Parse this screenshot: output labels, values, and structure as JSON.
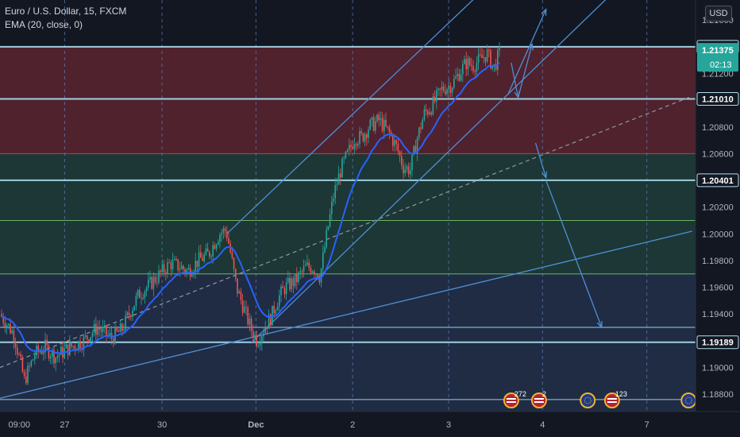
{
  "legend": {
    "symbol": "Euro / U.S. Dollar, 15, FXCM",
    "indicator": "EMA (20, close, 0)"
  },
  "currency_button": "USD",
  "countdown": "02:13",
  "colors": {
    "background": "#131722",
    "red_zone": "#5a2430",
    "green_zone": "#1f3d38",
    "blue_zone": "#22304a",
    "candle_up": "#26a69a",
    "candle_down": "#ef5350",
    "ema": "#2962ff",
    "trendline": "#4f8fd6",
    "level_line": "#aee0f2",
    "red_line": "#e03c3c",
    "green_line": "#79c36a",
    "price_badge": "#26a69a"
  },
  "events": [
    {
      "id": "ev1",
      "icon": "us-flag-icon",
      "count": "272"
    },
    {
      "id": "ev2",
      "icon": "us-flag-icon",
      "count": "2"
    },
    {
      "id": "ev3",
      "icon": "eu-flag-icon",
      "count": ""
    },
    {
      "id": "ev4",
      "icon": "us-flag-icon",
      "count": "123"
    },
    {
      "id": "ev5",
      "icon": "eu-flag-icon",
      "count": ""
    }
  ],
  "chart_data": {
    "type": "candlestick",
    "ylim": [
      1.1867,
      1.2175
    ],
    "y_ticks": [
      "1.21600",
      "1.21400",
      "1.21200",
      "1.20800",
      "1.20600",
      "1.20200",
      "1.20000",
      "1.19800",
      "1.19600",
      "1.19400",
      "1.19000",
      "1.18800"
    ],
    "x_ticks": [
      "09:00",
      "27",
      "30",
      "Dec",
      "2",
      "3",
      "4",
      "7"
    ],
    "current_price": 1.21375,
    "levels": [
      {
        "value": 1.214,
        "label": "1.21400",
        "kind": "resistance"
      },
      {
        "value": 1.2101,
        "label": "1.21010",
        "kind": "resistance"
      },
      {
        "value": 1.206,
        "kind": "red"
      },
      {
        "value": 1.20401,
        "label": "1.20401",
        "kind": "support"
      },
      {
        "value": 1.201,
        "kind": "green"
      },
      {
        "value": 1.197,
        "kind": "green"
      },
      {
        "value": 1.193,
        "kind": "blue"
      },
      {
        "value": 1.19189,
        "label": "1.19189",
        "kind": "support"
      },
      {
        "value": 1.1876,
        "kind": "blue"
      }
    ],
    "zones": [
      {
        "from": 1.214,
        "to": 1.206,
        "kind": "red"
      },
      {
        "from": 1.206,
        "to": 1.197,
        "kind": "green"
      },
      {
        "from": 1.197,
        "to": 1.184,
        "kind": "blue"
      }
    ],
    "price_path": [
      [
        0,
        1.194
      ],
      [
        0.02,
        1.1925
      ],
      [
        0.035,
        1.189
      ],
      [
        0.05,
        1.191
      ],
      [
        0.065,
        1.1915
      ],
      [
        0.08,
        1.1908
      ],
      [
        0.1,
        1.1915
      ],
      [
        0.12,
        1.192
      ],
      [
        0.14,
        1.193
      ],
      [
        0.16,
        1.1922
      ],
      [
        0.175,
        1.1928
      ],
      [
        0.19,
        1.1945
      ],
      [
        0.2,
        1.1955
      ],
      [
        0.215,
        1.1962
      ],
      [
        0.23,
        1.197
      ],
      [
        0.245,
        1.1978
      ],
      [
        0.26,
        1.1975
      ],
      [
        0.27,
        1.1972
      ],
      [
        0.285,
        1.198
      ],
      [
        0.3,
        1.1985
      ],
      [
        0.315,
        1.2
      ],
      [
        0.325,
        1.2003
      ],
      [
        0.33,
        1.199
      ],
      [
        0.34,
        1.196
      ],
      [
        0.35,
        1.1945
      ],
      [
        0.36,
        1.193
      ],
      [
        0.37,
        1.192
      ],
      [
        0.38,
        1.193
      ],
      [
        0.39,
        1.1938
      ],
      [
        0.4,
        1.1952
      ],
      [
        0.41,
        1.196
      ],
      [
        0.425,
        1.1965
      ],
      [
        0.44,
        1.1975
      ],
      [
        0.45,
        1.1975
      ],
      [
        0.46,
        1.1968
      ],
      [
        0.47,
        1.2
      ],
      [
        0.48,
        1.203
      ],
      [
        0.49,
        1.2048
      ],
      [
        0.5,
        1.206
      ],
      [
        0.51,
        1.2072
      ],
      [
        0.52,
        1.2072
      ],
      [
        0.53,
        1.208
      ],
      [
        0.545,
        1.2085
      ],
      [
        0.56,
        1.2075
      ],
      [
        0.57,
        1.2065
      ],
      [
        0.58,
        1.205
      ],
      [
        0.59,
        1.2048
      ],
      [
        0.6,
        1.2072
      ],
      [
        0.61,
        1.209
      ],
      [
        0.62,
        1.2095
      ],
      [
        0.635,
        1.2108
      ],
      [
        0.65,
        1.2112
      ],
      [
        0.66,
        1.212
      ],
      [
        0.67,
        1.2128
      ],
      [
        0.68,
        1.2126
      ],
      [
        0.69,
        1.213
      ],
      [
        0.7,
        1.2135
      ],
      [
        0.71,
        1.2124
      ],
      [
        0.72,
        1.2138
      ]
    ],
    "channel_lines": [
      {
        "x1": 0.326,
        "y1": 1.2,
        "x2": 0.7,
        "y2": 1.2185,
        "style": "solid"
      },
      {
        "x1": 0.36,
        "y1": 1.1918,
        "x2": 0.9,
        "y2": 1.219,
        "style": "solid"
      },
      {
        "x1": 0.0,
        "y1": 1.1877,
        "x2": 0.995,
        "y2": 1.2002,
        "style": "solid"
      },
      {
        "x1": 0.0,
        "y1": 1.19,
        "x2": 0.995,
        "y2": 1.2103,
        "style": "dashed"
      }
    ],
    "arrows": [
      {
        "x1": 0.73,
        "y1": 1.2104,
        "x2": 0.785,
        "y2": 1.2168
      },
      {
        "x1": 0.735,
        "y1": 1.2128,
        "x2": 0.745,
        "y2": 1.2102
      },
      {
        "x1": 0.745,
        "y1": 1.2102,
        "x2": 0.765,
        "y2": 1.2142
      },
      {
        "x1": 0.77,
        "y1": 1.2068,
        "x2": 0.785,
        "y2": 1.2042
      },
      {
        "x1": 0.785,
        "y1": 1.204,
        "x2": 0.865,
        "y2": 1.193
      }
    ]
  }
}
